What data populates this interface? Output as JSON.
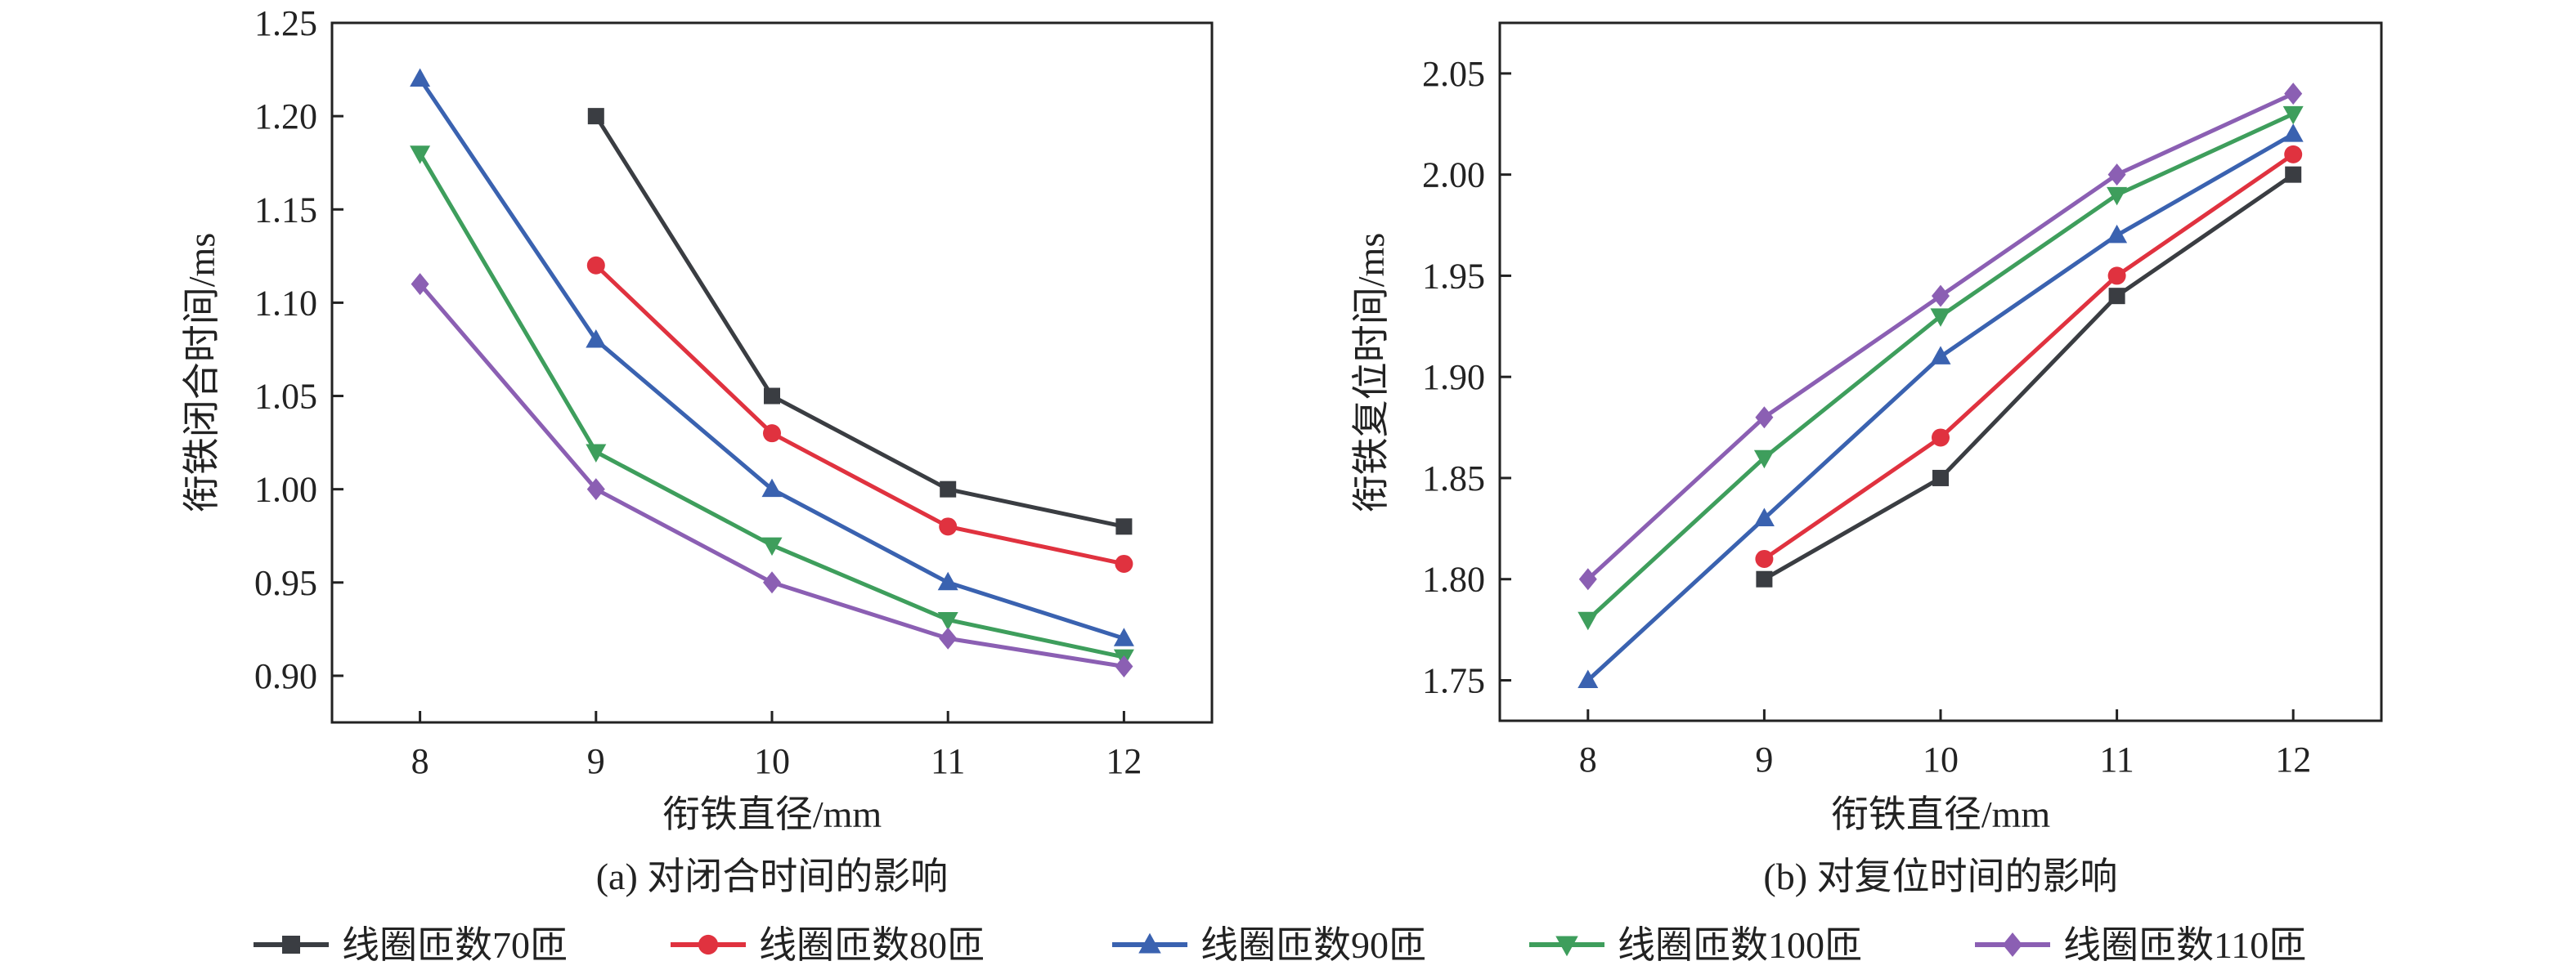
{
  "chart_data": [
    {
      "type": "line",
      "title": "",
      "caption": "(a) 对闭合时间的影响",
      "xlabel": "衔铁直径/mm",
      "ylabel": "衔铁闭合时间/ms",
      "x": [
        8,
        9,
        10,
        11,
        12
      ],
      "xticks": [
        "8",
        "9",
        "10",
        "11",
        "12"
      ],
      "xlim": [
        7.5,
        12.5
      ],
      "ylim": [
        0.875,
        1.25
      ],
      "yticks": [
        "0.90",
        "0.95",
        "1.00",
        "1.05",
        "1.10",
        "1.15",
        "1.20",
        "1.25"
      ],
      "ytick_values": [
        0.9,
        0.95,
        1.0,
        1.05,
        1.1,
        1.15,
        1.2,
        1.25
      ],
      "grid": false,
      "series": [
        {
          "name": "线圈匝数70匝",
          "marker": "square",
          "color": "#3a3d42",
          "values": [
            null,
            1.2,
            1.05,
            1.0,
            0.98
          ]
        },
        {
          "name": "线圈匝数80匝",
          "marker": "circle",
          "color": "#e0323f",
          "values": [
            null,
            1.12,
            1.03,
            0.98,
            0.96
          ]
        },
        {
          "name": "线圈匝数90匝",
          "marker": "triangle-up",
          "color": "#3a62b0",
          "values": [
            1.22,
            1.08,
            1.0,
            0.95,
            0.92
          ]
        },
        {
          "name": "线圈匝数100匝",
          "marker": "triangle-down",
          "color": "#3e9e5c",
          "values": [
            1.18,
            1.02,
            0.97,
            0.93,
            0.91
          ]
        },
        {
          "name": "线圈匝数110匝",
          "marker": "diamond",
          "color": "#8b5fb3",
          "values": [
            1.11,
            1.0,
            0.95,
            0.92,
            0.905
          ]
        }
      ]
    },
    {
      "type": "line",
      "title": "",
      "caption": "(b) 对复位时间的影响",
      "xlabel": "衔铁直径/mm",
      "ylabel": "衔铁复位时间/ms",
      "x": [
        8,
        9,
        10,
        11,
        12
      ],
      "xticks": [
        "8",
        "9",
        "10",
        "11",
        "12"
      ],
      "xlim": [
        7.5,
        12.5
      ],
      "ylim": [
        1.73,
        2.075
      ],
      "yticks": [
        "1.75",
        "1.80",
        "1.85",
        "1.90",
        "1.95",
        "2.00",
        "2.05"
      ],
      "ytick_values": [
        1.75,
        1.8,
        1.85,
        1.9,
        1.95,
        2.0,
        2.05
      ],
      "grid": false,
      "series": [
        {
          "name": "线圈匝数70匝",
          "marker": "square",
          "color": "#3a3d42",
          "values": [
            null,
            1.8,
            1.85,
            1.94,
            2.0
          ]
        },
        {
          "name": "线圈匝数80匝",
          "marker": "circle",
          "color": "#e0323f",
          "values": [
            null,
            1.81,
            1.87,
            1.95,
            2.01
          ]
        },
        {
          "name": "线圈匝数90匝",
          "marker": "triangle-up",
          "color": "#3a62b0",
          "values": [
            1.75,
            1.83,
            1.91,
            1.97,
            2.02
          ]
        },
        {
          "name": "线圈匝数100匝",
          "marker": "triangle-down",
          "color": "#3e9e5c",
          "values": [
            1.78,
            1.86,
            1.93,
            1.99,
            2.03
          ]
        },
        {
          "name": "线圈匝数110匝",
          "marker": "diamond",
          "color": "#8b5fb3",
          "values": [
            1.8,
            1.88,
            1.94,
            2.0,
            2.04
          ]
        }
      ]
    }
  ],
  "legend": {
    "placement": "bottom",
    "items": [
      {
        "label": "线圈匝数70匝",
        "marker": "square",
        "color": "#3a3d42"
      },
      {
        "label": "线圈匝数80匝",
        "marker": "circle",
        "color": "#e0323f"
      },
      {
        "label": "线圈匝数90匝",
        "marker": "triangle-up",
        "color": "#3a62b0"
      },
      {
        "label": "线圈匝数100匝",
        "marker": "triangle-down",
        "color": "#3e9e5c"
      },
      {
        "label": "线圈匝数110匝",
        "marker": "diamond",
        "color": "#8b5fb3"
      }
    ]
  }
}
